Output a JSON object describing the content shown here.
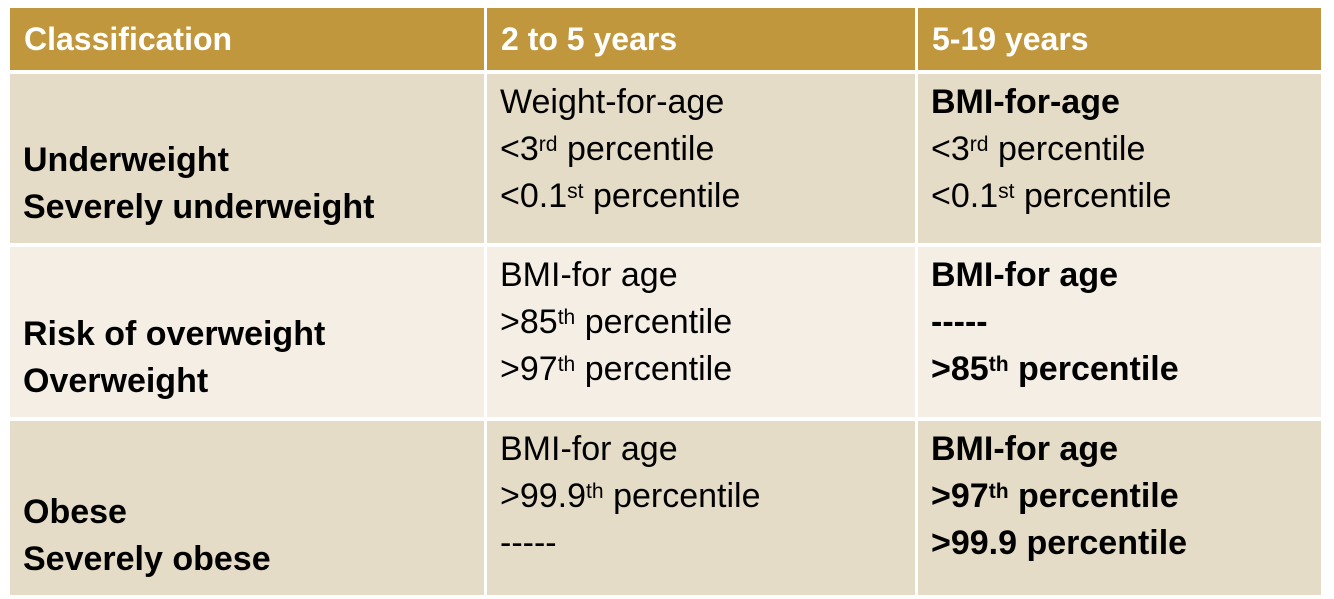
{
  "colors": {
    "header_bg": "#C1973D",
    "row_dark": "#E5DCC7",
    "row_light": "#F5EEE5",
    "header_text": "#FFFFFF",
    "body_text": "#000000",
    "page_bg": "#FFFFFF"
  },
  "table": {
    "headers": [
      "Classification",
      "2 to 5 years",
      "5-19 years"
    ],
    "rows": [
      {
        "classification": {
          "lines": [
            {
              "pre": "Underweight",
              "sup": "",
              "post": "",
              "bold": true
            },
            {
              "pre": "Severely underweight",
              "sup": "",
              "post": "",
              "bold": true
            }
          ]
        },
        "age_2_5": {
          "lines": [
            {
              "pre": "Weight-for-age",
              "sup": "",
              "post": "",
              "bold": false
            },
            {
              "pre": "<3",
              "sup": "rd",
              "post": " percentile",
              "bold": false
            },
            {
              "pre": "<0.1",
              "sup": "st",
              "post": " percentile",
              "bold": false
            }
          ]
        },
        "age_5_19": {
          "lines": [
            {
              "pre": "BMI-for-age",
              "sup": "",
              "post": "",
              "bold": true
            },
            {
              "pre": "<3",
              "sup": "rd",
              "post": " percentile",
              "bold": false
            },
            {
              "pre": "<0.1",
              "sup": "st",
              "post": " percentile",
              "bold": false
            }
          ]
        }
      },
      {
        "classification": {
          "lines": [
            {
              "pre": "Risk of overweight",
              "sup": "",
              "post": "",
              "bold": true
            },
            {
              "pre": "Overweight",
              "sup": "",
              "post": "",
              "bold": true
            }
          ]
        },
        "age_2_5": {
          "lines": [
            {
              "pre": "BMI-for age",
              "sup": "",
              "post": "",
              "bold": false
            },
            {
              "pre": ">85",
              "sup": "th",
              "post": " percentile",
              "bold": false
            },
            {
              "pre": ">97",
              "sup": "th",
              "post": " percentile",
              "bold": false
            }
          ]
        },
        "age_5_19": {
          "lines": [
            {
              "pre": "BMI-for age",
              "sup": "",
              "post": "",
              "bold": true
            },
            {
              "pre": "-----",
              "sup": "",
              "post": "",
              "bold": true
            },
            {
              "pre": ">85",
              "sup": "th",
              "post": " percentile",
              "bold": true
            }
          ]
        }
      },
      {
        "classification": {
          "lines": [
            {
              "pre": "Obese",
              "sup": "",
              "post": "",
              "bold": true
            },
            {
              "pre": "Severely obese",
              "sup": "",
              "post": "",
              "bold": true
            }
          ]
        },
        "age_2_5": {
          "lines": [
            {
              "pre": "BMI-for age",
              "sup": "",
              "post": "",
              "bold": false
            },
            {
              "pre": ">99.9",
              "sup": "th",
              "post": " percentile",
              "bold": false
            },
            {
              "pre": "-----",
              "sup": "",
              "post": "",
              "bold": false
            }
          ]
        },
        "age_5_19": {
          "lines": [
            {
              "pre": "BMI-for age",
              "sup": "",
              "post": "",
              "bold": true
            },
            {
              "pre": ">97",
              "sup": "th",
              "post": " percentile",
              "bold": true
            },
            {
              "pre": ">99.9 percentile",
              "sup": "",
              "post": "",
              "bold": true
            }
          ]
        }
      }
    ]
  }
}
